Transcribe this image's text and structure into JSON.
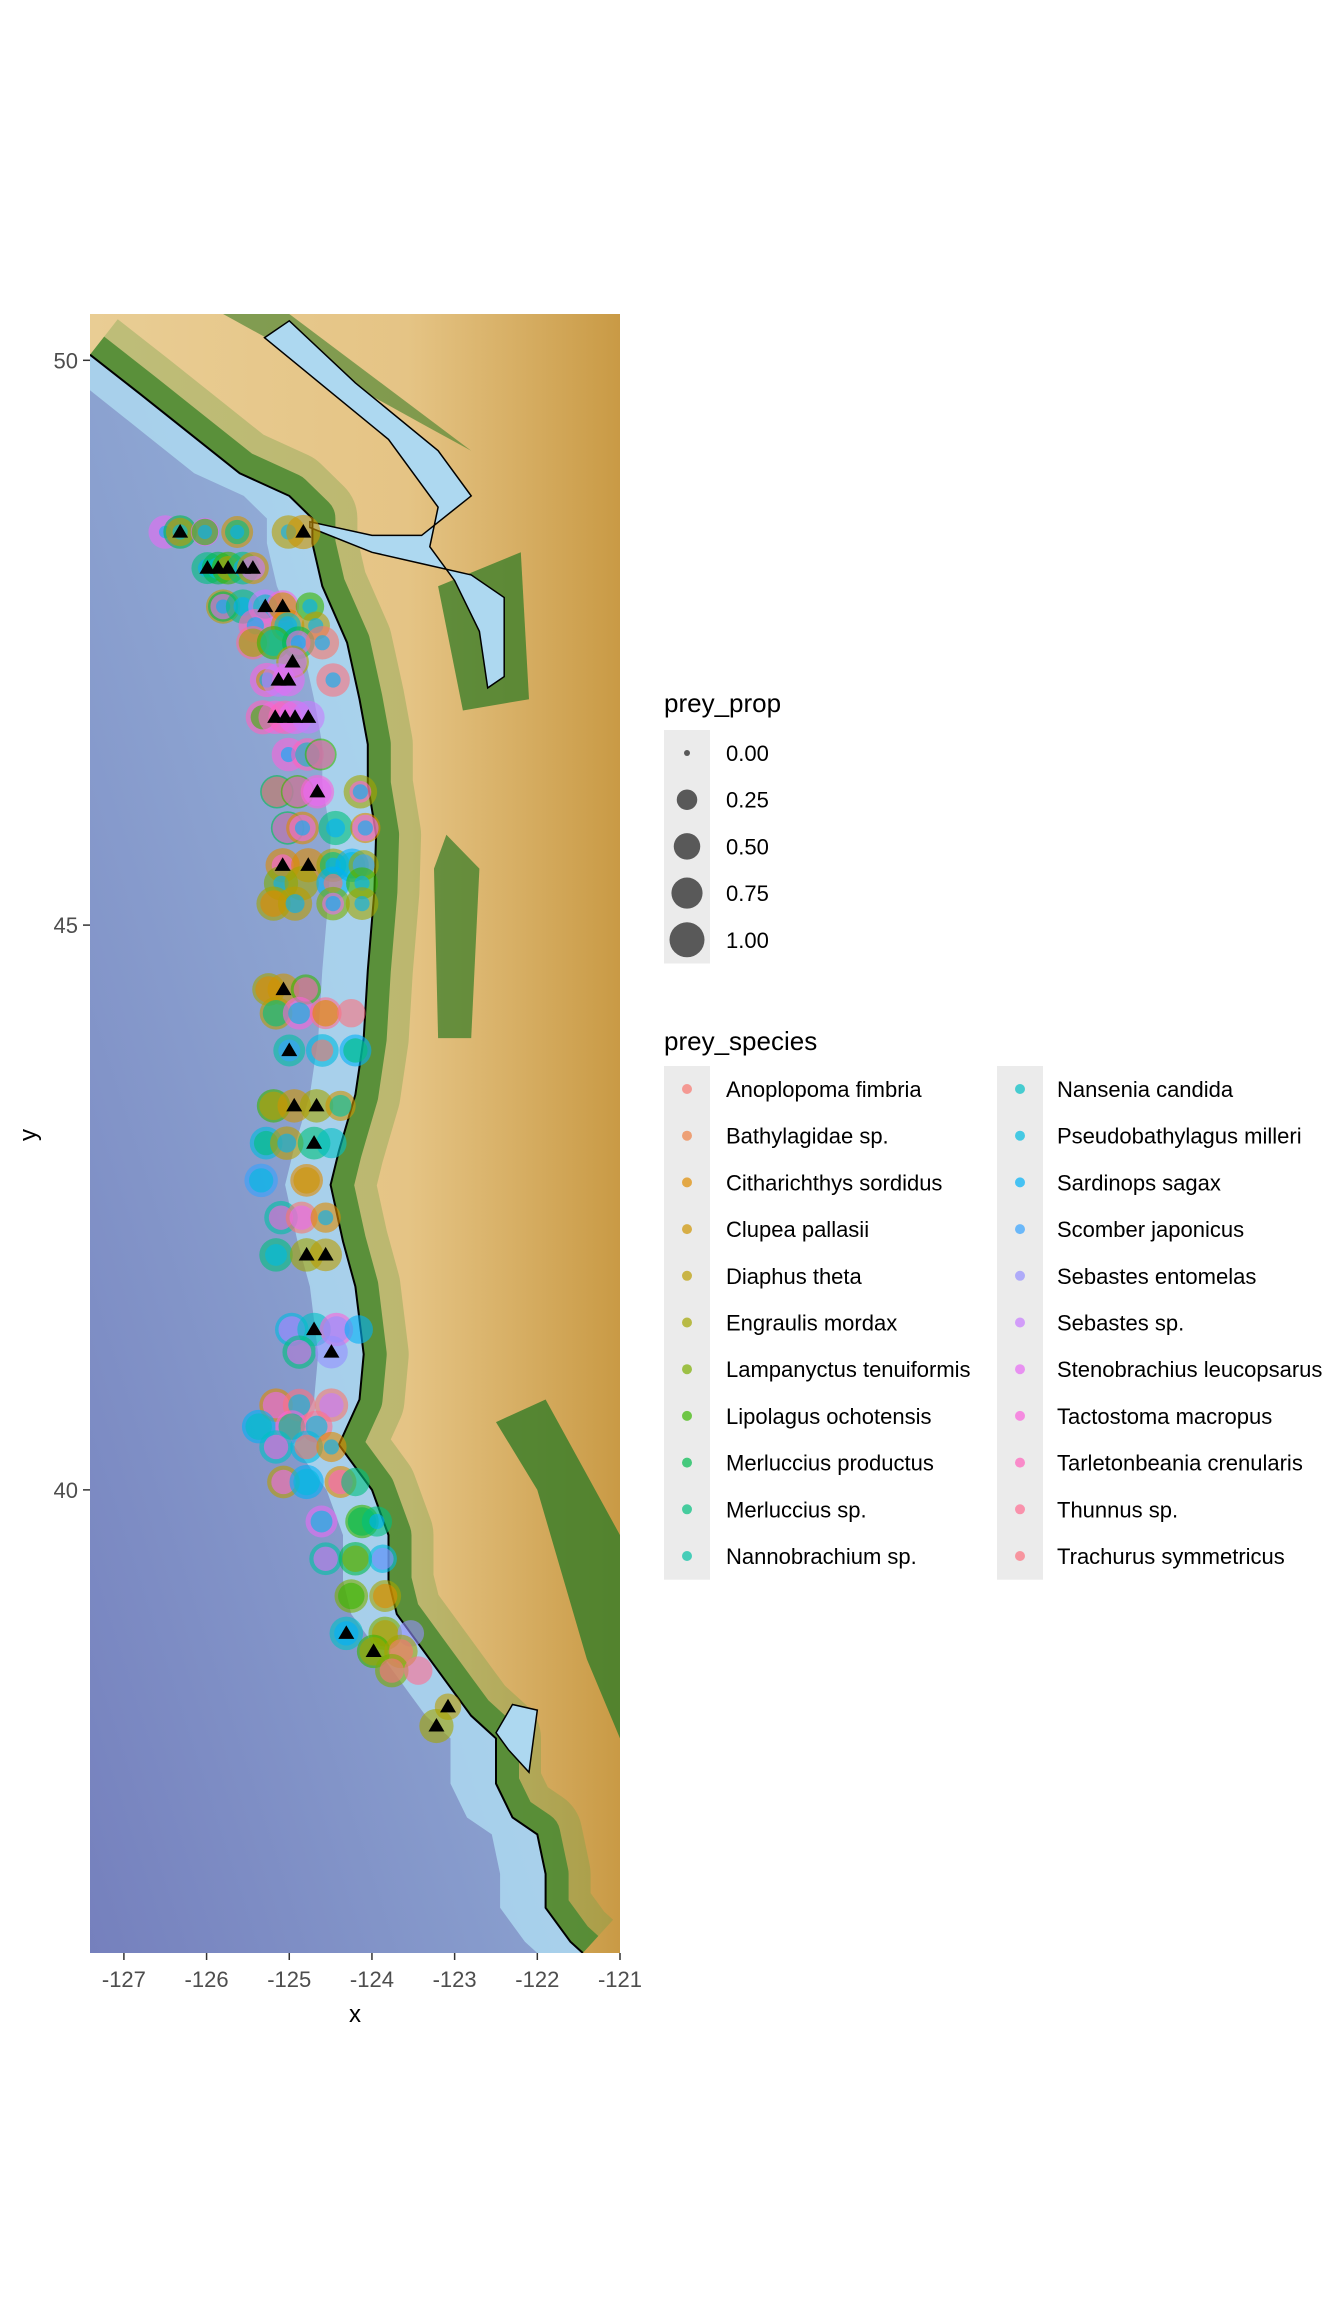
{
  "chart_data": {
    "type": "scatter",
    "subtype": "bubble map over shaded-relief bathymetry/topography",
    "xlabel": "x",
    "ylabel": "y",
    "xlim": [
      -127.41,
      -121.0
    ],
    "ylim": [
      35.9,
      50.41
    ],
    "x_ticks": [
      -127,
      -126,
      -125,
      -124,
      -123,
      -122,
      -121
    ],
    "y_ticks": [
      40,
      45,
      50
    ],
    "grid": false,
    "legend_position": "right",
    "size_legend": {
      "title": "prey_prop",
      "values": [
        0.0,
        0.25,
        0.5,
        0.75,
        1.0
      ],
      "labels": [
        "0.00",
        "0.25",
        "0.50",
        "0.75",
        "1.00"
      ]
    },
    "color_legend": {
      "title": "prey_species",
      "species": [
        "Anoplopoma fimbria",
        "Bathylagidae sp.",
        "Citharichthys sordidus",
        "Clupea pallasii",
        "Diaphus theta",
        "Engraulis mordax",
        "Lampanyctus tenuiformis",
        "Lipolagus ochotensis",
        "Merluccius productus",
        "Merluccius sp.",
        "Nannobrachium sp.",
        "Nansenia candida",
        "Pseudobathylagus milleri",
        "Sardinops sagax",
        "Scomber japonicus",
        "Sebastes entomelas",
        "Sebastes sp.",
        "Stenobrachius leucopsarus",
        "Tactostoma macropus",
        "Tarletonbeania crenularis",
        "Thunnus sp.",
        "Trachurus symmetricus"
      ],
      "colors": [
        "#F8766D",
        "#EE8044",
        "#E08B00",
        "#CF9400",
        "#BB9D00",
        "#A3A500",
        "#7CAE00",
        "#39B600",
        "#00BB4E",
        "#00BF7D",
        "#00C1A3",
        "#00BFC4",
        "#00BAE0",
        "#00B0F6",
        "#35A2FF",
        "#9590FF",
        "#C77CFF",
        "#E76BF3",
        "#FA62DB",
        "#FF62BC",
        "#FF6C91",
        "#FC717F"
      ]
    },
    "map_colors": {
      "deep_ocean": "#7782BE",
      "mid_ocean": "#8EA7D3",
      "shelf": "#ADD8F0",
      "lowland": "#3E7F2A",
      "upland": "#E8C98E",
      "highland": "#C99A45",
      "coastline": "#000000"
    },
    "stations": [
      {
        "lon": -126.5,
        "lat": 48.48,
        "prey": {
          "17": 0.9,
          "13": 0.05
        }
      },
      {
        "lon": -126.32,
        "lat": 48.48,
        "prey": {
          "8": 0.9,
          "4": 0.6,
          "12": 0.1
        },
        "tri": true
      },
      {
        "lon": -126.02,
        "lat": 48.48,
        "prey": {
          "17": 0.6,
          "7": 0.5,
          "13": 0.08
        }
      },
      {
        "lon": -125.63,
        "lat": 48.48,
        "prey": {
          "3": 0.8,
          "9": 0.4,
          "13": 0.08
        }
      },
      {
        "lon": -125.01,
        "lat": 48.48,
        "prey": {
          "4": 0.9,
          "13": 0.1
        }
      },
      {
        "lon": -124.83,
        "lat": 48.48,
        "prey": {
          "3": 0.95
        },
        "tri": true
      },
      {
        "lon": -125.99,
        "lat": 48.16,
        "prey": {
          "9": 0.8,
          "13": 0.2
        },
        "tri": true
      },
      {
        "lon": -125.86,
        "lat": 48.16,
        "prey": {
          "8": 0.85,
          "12": 0.3
        },
        "tri": true
      },
      {
        "lon": -125.74,
        "lat": 48.16,
        "prey": {
          "7": 0.85,
          "4": 0.4
        },
        "tri": true
      },
      {
        "lon": -125.56,
        "lat": 48.16,
        "prey": {
          "9": 0.85,
          "13": 0.2
        },
        "tri": true
      },
      {
        "lon": -125.44,
        "lat": 48.16,
        "prey": {
          "3": 0.8,
          "16": 0.4
        },
        "tri": true
      },
      {
        "lon": -125.8,
        "lat": 47.82,
        "prey": {
          "4": 0.95,
          "8": 0.7,
          "17": 0.45,
          "13": 0.08
        }
      },
      {
        "lon": -125.56,
        "lat": 47.82,
        "prey": {
          "9": 0.95,
          "13": 0.2
        }
      },
      {
        "lon": -125.29,
        "lat": 47.82,
        "prey": {
          "16": 0.95,
          "11": 0.4
        },
        "tri": true
      },
      {
        "lon": -125.08,
        "lat": 47.82,
        "prey": {
          "18": 0.85,
          "3": 0.6
        },
        "tri": true
      },
      {
        "lon": -124.75,
        "lat": 47.82,
        "prey": {
          "7": 0.6,
          "13": 0.1
        }
      },
      {
        "lon": -125.41,
        "lat": 47.65,
        "prey": {
          "19": 0.9,
          "13": 0.15
        }
      },
      {
        "lon": -125.02,
        "lat": 47.65,
        "prey": {
          "2": 0.9,
          "11": 0.5,
          "13": 0.2
        }
      },
      {
        "lon": -124.68,
        "lat": 47.65,
        "prey": {
          "4": 0.6,
          "13": 0.1
        }
      },
      {
        "lon": -125.44,
        "lat": 47.5,
        "prey": {
          "20": 0.9,
          "5": 0.6
        }
      },
      {
        "lon": -125.19,
        "lat": 47.5,
        "prey": {
          "7": 0.9,
          "10": 0.5
        }
      },
      {
        "lon": -124.89,
        "lat": 47.5,
        "prey": {
          "8": 0.85,
          "17": 0.4,
          "13": 0.1
        }
      },
      {
        "lon": -124.6,
        "lat": 47.5,
        "prey": {
          "0": 0.9,
          "13": 0.1
        }
      },
      {
        "lon": -124.96,
        "lat": 47.33,
        "prey": {
          "4": 0.85,
          "16": 0.6
        },
        "tri": true
      },
      {
        "lon": -125.27,
        "lat": 47.17,
        "prey": {
          "18": 0.95,
          "4": 0.3,
          "13": 0.1
        }
      },
      {
        "lon": -125.13,
        "lat": 47.17,
        "prey": {
          "16": 0.9
        },
        "tri": true
      },
      {
        "lon": -125.01,
        "lat": 47.17,
        "prey": {
          "17": 0.85
        },
        "tri": true
      },
      {
        "lon": -124.47,
        "lat": 47.17,
        "prey": {
          "21": 0.9,
          "13": 0.1
        }
      },
      {
        "lon": -125.32,
        "lat": 46.84,
        "prey": {
          "19": 0.95,
          "7": 0.4
        }
      },
      {
        "lon": -125.17,
        "lat": 46.84,
        "prey": {
          "18": 0.9
        },
        "tri": true
      },
      {
        "lon": -125.05,
        "lat": 46.84,
        "prey": {
          "19": 0.9
        },
        "tri": true
      },
      {
        "lon": -124.93,
        "lat": 46.84,
        "prey": {
          "17": 0.9
        },
        "tri": true
      },
      {
        "lon": -124.77,
        "lat": 46.84,
        "prey": {
          "16": 0.85
        },
        "tri": true
      },
      {
        "lon": -125.01,
        "lat": 46.51,
        "prey": {
          "18": 0.9,
          "13": 0.1
        }
      },
      {
        "lon": -124.78,
        "lat": 46.51,
        "prey": {
          "19": 0.85,
          "11": 0.4
        }
      },
      {
        "lon": -124.62,
        "lat": 46.51,
        "prey": {
          "7": 0.8,
          "18": 0.6
        }
      },
      {
        "lon": -125.15,
        "lat": 46.18,
        "prey": {
          "8": 0.9,
          "20": 0.7
        }
      },
      {
        "lon": -124.9,
        "lat": 46.18,
        "prey": {
          "7": 0.9,
          "18": 0.7
        }
      },
      {
        "lon": -124.66,
        "lat": 46.18,
        "prey": {
          "18": 0.9,
          "17": 0.6
        },
        "tri": true
      },
      {
        "lon": -124.14,
        "lat": 46.18,
        "prey": {
          "5": 0.9,
          "18": 0.3,
          "13": 0.1
        }
      },
      {
        "lon": -125.02,
        "lat": 45.86,
        "prey": {
          "8": 0.9,
          "18": 0.7
        }
      },
      {
        "lon": -124.84,
        "lat": 45.86,
        "prey": {
          "2": 0.85,
          "17": 0.5,
          "13": 0.1
        }
      },
      {
        "lon": -124.44,
        "lat": 45.86,
        "prey": {
          "9": 0.95,
          "13": 0.2
        }
      },
      {
        "lon": -124.08,
        "lat": 45.86,
        "prey": {
          "2": 0.7,
          "17": 0.5,
          "13": 0.1
        }
      },
      {
        "lon": -125.08,
        "lat": 45.53,
        "prey": {
          "2": 0.95,
          "18": 0.3
        },
        "tri": true
      },
      {
        "lon": -124.77,
        "lat": 45.53,
        "prey": {
          "2": 0.95
        },
        "tri": true
      },
      {
        "lon": -124.47,
        "lat": 45.53,
        "prey": {
          "5": 0.9,
          "9": 0.5,
          "13": 0.1
        }
      },
      {
        "lon": -124.24,
        "lat": 45.53,
        "prey": {
          "13": 0.9,
          "12": 0.5
        }
      },
      {
        "lon": -124.1,
        "lat": 45.53,
        "prey": {
          "5": 0.7,
          "14": 0.3
        }
      },
      {
        "lon": -125.1,
        "lat": 45.37,
        "prey": {
          "6": 0.95,
          "13": 0.1
        }
      },
      {
        "lon": -124.85,
        "lat": 45.37,
        "prey": {
          "5": 0.95
        }
      },
      {
        "lon": -124.47,
        "lat": 45.37,
        "prey": {
          "13": 0.9,
          "0": 0.2
        }
      },
      {
        "lon": -124.12,
        "lat": 45.37,
        "prey": {
          "7": 0.8,
          "13": 0.1
        }
      },
      {
        "lon": -125.19,
        "lat": 45.19,
        "prey": {
          "5": 0.95,
          "2": 0.5
        }
      },
      {
        "lon": -124.93,
        "lat": 45.19,
        "prey": {
          "4": 0.95,
          "13": 0.2
        }
      },
      {
        "lon": -124.47,
        "lat": 45.19,
        "prey": {
          "6": 0.9,
          "17": 0.3,
          "13": 0.1
        }
      },
      {
        "lon": -124.12,
        "lat": 45.19,
        "prey": {
          "5": 0.85,
          "13": 0.1
        }
      },
      {
        "lon": -125.25,
        "lat": 44.43,
        "prey": {
          "5": 0.85,
          "2": 0.5
        }
      },
      {
        "lon": -125.07,
        "lat": 44.43,
        "prey": {
          "3": 0.8
        },
        "tri": true
      },
      {
        "lon": -124.8,
        "lat": 44.43,
        "prey": {
          "7": 0.7,
          "19": 0.4
        }
      },
      {
        "lon": -125.16,
        "lat": 44.22,
        "prey": {
          "4": 0.85,
          "9": 0.5
        }
      },
      {
        "lon": -124.88,
        "lat": 44.22,
        "prey": {
          "18": 0.85,
          "12": 0.3
        }
      },
      {
        "lon": -124.56,
        "lat": 44.22,
        "prey": {
          "20": 0.8,
          "2": 0.5
        }
      },
      {
        "lon": -124.25,
        "lat": 44.22,
        "prey": {
          "21": 0.6
        }
      },
      {
        "lon": -125.0,
        "lat": 43.89,
        "prey": {
          "10": 0.8,
          "14": 0.3
        },
        "tri": true
      },
      {
        "lon": -124.6,
        "lat": 43.89,
        "prey": {
          "12": 0.85,
          "0": 0.3
        }
      },
      {
        "lon": -124.2,
        "lat": 43.89,
        "prey": {
          "13": 0.8,
          "9": 0.4
        }
      },
      {
        "lon": -125.19,
        "lat": 43.4,
        "prey": {
          "7": 0.9,
          "4": 0.6
        }
      },
      {
        "lon": -124.94,
        "lat": 43.4,
        "prey": {
          "3": 0.9
        },
        "tri": true
      },
      {
        "lon": -124.67,
        "lat": 43.4,
        "prey": {
          "5": 0.9
        },
        "tri": true
      },
      {
        "lon": -124.38,
        "lat": 43.4,
        "prey": {
          "3": 0.7,
          "10": 0.3
        }
      },
      {
        "lon": -125.28,
        "lat": 43.07,
        "prey": {
          "12": 0.85,
          "9": 0.4
        }
      },
      {
        "lon": -125.03,
        "lat": 43.07,
        "prey": {
          "4": 0.9,
          "13": 0.2
        }
      },
      {
        "lon": -124.7,
        "lat": 43.07,
        "prey": {
          "9": 0.85
        },
        "tri": true
      },
      {
        "lon": -124.49,
        "lat": 43.07,
        "prey": {
          "11": 0.7
        }
      },
      {
        "lon": -125.34,
        "lat": 42.74,
        "prey": {
          "14": 0.9,
          "12": 0.4
        }
      },
      {
        "lon": -124.79,
        "lat": 42.74,
        "prey": {
          "2": 0.85,
          "3": 0.5
        }
      },
      {
        "lon": -125.1,
        "lat": 42.41,
        "prey": {
          "10": 0.9,
          "18": 0.4
        }
      },
      {
        "lon": -124.85,
        "lat": 42.41,
        "prey": {
          "0": 0.8,
          "17": 0.4
        }
      },
      {
        "lon": -124.56,
        "lat": 42.41,
        "prey": {
          "2": 0.7,
          "13": 0.1
        }
      },
      {
        "lon": -125.16,
        "lat": 42.08,
        "prey": {
          "9": 0.9,
          "12": 0.3
        }
      },
      {
        "lon": -124.79,
        "lat": 42.08,
        "prey": {
          "5": 0.9
        },
        "tri": true
      },
      {
        "lon": -124.56,
        "lat": 42.08,
        "prey": {
          "4": 0.85
        },
        "tri": true
      },
      {
        "lon": -124.97,
        "lat": 41.42,
        "prey": {
          "12": 0.9,
          "16": 0.5
        }
      },
      {
        "lon": -124.7,
        "lat": 41.42,
        "prey": {
          "11": 0.9
        },
        "tri": true
      },
      {
        "lon": -124.43,
        "lat": 41.42,
        "prey": {
          "18": 0.9,
          "15": 0.5
        }
      },
      {
        "lon": -124.16,
        "lat": 41.42,
        "prey": {
          "13": 0.6
        }
      },
      {
        "lon": -124.88,
        "lat": 41.22,
        "prey": {
          "9": 0.9,
          "17": 0.4
        }
      },
      {
        "lon": -124.49,
        "lat": 41.22,
        "prey": {
          "15": 0.85
        },
        "tri": true
      },
      {
        "lon": -125.16,
        "lat": 40.75,
        "prey": {
          "2": 0.9,
          "17": 0.5
        }
      },
      {
        "lon": -124.88,
        "lat": 40.75,
        "prey": {
          "21": 0.85,
          "12": 0.3
        }
      },
      {
        "lon": -124.49,
        "lat": 40.75,
        "prey": {
          "0": 0.9,
          "16": 0.4
        }
      },
      {
        "lon": -125.37,
        "lat": 40.56,
        "prey": {
          "13": 0.9,
          "11": 0.5
        }
      },
      {
        "lon": -124.97,
        "lat": 40.56,
        "prey": {
          "18": 0.85,
          "9": 0.5
        }
      },
      {
        "lon": -124.67,
        "lat": 40.56,
        "prey": {
          "20": 0.8,
          "12": 0.3
        }
      },
      {
        "lon": -125.16,
        "lat": 40.38,
        "prey": {
          "11": 0.9,
          "18": 0.4
        }
      },
      {
        "lon": -124.79,
        "lat": 40.38,
        "prey": {
          "12": 0.85,
          "0": 0.4
        }
      },
      {
        "lon": -124.49,
        "lat": 40.38,
        "prey": {
          "2": 0.7,
          "13": 0.1
        }
      },
      {
        "lon": -125.07,
        "lat": 40.07,
        "prey": {
          "4": 0.85,
          "17": 0.4
        }
      },
      {
        "lon": -124.79,
        "lat": 40.07,
        "prey": {
          "13": 0.95,
          "12": 0.5
        }
      },
      {
        "lon": -124.38,
        "lat": 40.07,
        "prey": {
          "2": 0.8,
          "19": 0.4
        }
      },
      {
        "lon": -124.2,
        "lat": 40.07,
        "prey": {
          "9": 0.6
        }
      },
      {
        "lon": -124.61,
        "lat": 39.72,
        "prey": {
          "17": 0.8,
          "12": 0.3
        }
      },
      {
        "lon": -124.12,
        "lat": 39.72,
        "prey": {
          "7": 0.9,
          "8": 0.6
        }
      },
      {
        "lon": -123.94,
        "lat": 39.72,
        "prey": {
          "9": 0.7,
          "13": 0.1
        }
      },
      {
        "lon": -124.56,
        "lat": 39.39,
        "prey": {
          "10": 0.85,
          "17": 0.4
        }
      },
      {
        "lon": -124.2,
        "lat": 39.39,
        "prey": {
          "8": 0.9,
          "6": 0.5
        }
      },
      {
        "lon": -123.87,
        "lat": 39.39,
        "prey": {
          "12": 0.6,
          "15": 0.3
        }
      },
      {
        "lon": -124.25,
        "lat": 39.06,
        "prey": {
          "6": 0.9,
          "7": 0.5
        }
      },
      {
        "lon": -123.84,
        "lat": 39.06,
        "prey": {
          "5": 0.8,
          "2": 0.4
        }
      },
      {
        "lon": -124.31,
        "lat": 38.73,
        "prey": {
          "11": 0.9,
          "13": 0.4
        },
        "tri": true
      },
      {
        "lon": -123.84,
        "lat": 38.73,
        "prey": {
          "6": 0.9,
          "4": 0.5
        }
      },
      {
        "lon": -123.53,
        "lat": 38.73,
        "prey": {
          "15": 0.5
        }
      },
      {
        "lon": -123.98,
        "lat": 38.57,
        "prey": {
          "7": 0.9,
          "5": 0.6
        },
        "tri": true
      },
      {
        "lon": -123.65,
        "lat": 38.57,
        "prey": {
          "5": 0.9,
          "0": 0.4
        }
      },
      {
        "lon": -123.76,
        "lat": 38.4,
        "prey": {
          "6": 0.9,
          "21": 0.4
        }
      },
      {
        "lon": -123.44,
        "lat": 38.4,
        "prey": {
          "20": 0.6
        }
      },
      {
        "lon": -123.08,
        "lat": 38.08,
        "prey": {
          "4": 0.5
        },
        "tri": true
      },
      {
        "lon": -123.22,
        "lat": 37.91,
        "prey": {
          "5": 0.95
        },
        "tri": true
      }
    ]
  }
}
